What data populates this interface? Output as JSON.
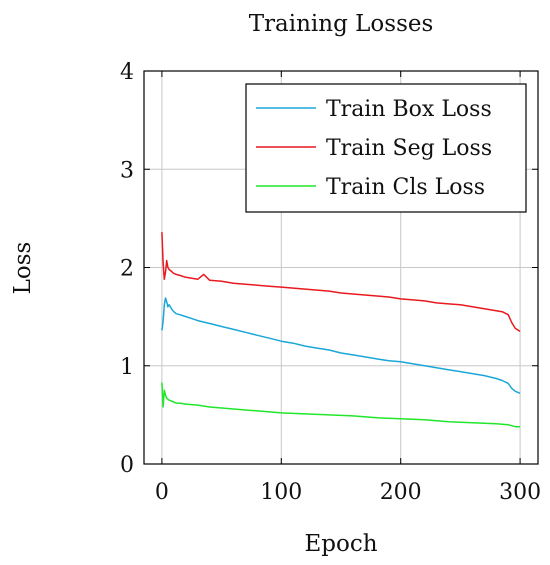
{
  "chart_data": {
    "type": "line",
    "title": "Training Losses",
    "xlabel": "Epoch",
    "ylabel": "Loss",
    "xlim": [
      -15,
      315
    ],
    "ylim": [
      0,
      4
    ],
    "x_ticks": [
      0,
      100,
      200,
      300
    ],
    "y_ticks": [
      0,
      1,
      2,
      3,
      4
    ],
    "grid": true,
    "legend_position": "top-right",
    "series": [
      {
        "name": "Train Box Loss",
        "color": "#1aa7d8",
        "x": [
          0,
          1,
          2,
          3,
          4,
          5,
          6,
          8,
          10,
          12,
          15,
          20,
          25,
          30,
          40,
          50,
          60,
          70,
          80,
          90,
          100,
          110,
          120,
          130,
          140,
          150,
          160,
          170,
          180,
          190,
          200,
          210,
          220,
          230,
          240,
          250,
          260,
          270,
          280,
          285,
          290,
          293,
          296,
          300
        ],
        "y": [
          1.36,
          1.45,
          1.62,
          1.69,
          1.65,
          1.6,
          1.62,
          1.58,
          1.55,
          1.53,
          1.52,
          1.5,
          1.48,
          1.46,
          1.43,
          1.4,
          1.37,
          1.34,
          1.31,
          1.28,
          1.25,
          1.23,
          1.2,
          1.18,
          1.16,
          1.13,
          1.11,
          1.09,
          1.07,
          1.05,
          1.04,
          1.02,
          1.0,
          0.98,
          0.96,
          0.94,
          0.92,
          0.9,
          0.87,
          0.85,
          0.82,
          0.77,
          0.74,
          0.72
        ]
      },
      {
        "name": "Train Seg Loss",
        "color": "#e8191f",
        "x": [
          0,
          1,
          2,
          3,
          4,
          5,
          6,
          8,
          10,
          12,
          15,
          20,
          25,
          30,
          35,
          40,
          50,
          60,
          70,
          80,
          90,
          100,
          110,
          120,
          130,
          140,
          150,
          160,
          170,
          180,
          190,
          200,
          210,
          220,
          230,
          240,
          250,
          260,
          270,
          280,
          285,
          290,
          293,
          296,
          300
        ],
        "y": [
          2.36,
          2.05,
          1.88,
          1.95,
          2.07,
          2.0,
          1.98,
          1.96,
          1.94,
          1.93,
          1.92,
          1.9,
          1.89,
          1.88,
          1.93,
          1.87,
          1.86,
          1.84,
          1.83,
          1.82,
          1.81,
          1.8,
          1.79,
          1.78,
          1.77,
          1.76,
          1.74,
          1.73,
          1.72,
          1.71,
          1.7,
          1.68,
          1.67,
          1.66,
          1.64,
          1.63,
          1.62,
          1.6,
          1.58,
          1.56,
          1.55,
          1.52,
          1.44,
          1.38,
          1.35
        ]
      },
      {
        "name": "Train Cls Loss",
        "color": "#22e62a",
        "x": [
          0,
          1,
          2,
          3,
          4,
          5,
          6,
          8,
          10,
          12,
          15,
          20,
          30,
          40,
          50,
          60,
          70,
          80,
          90,
          100,
          120,
          140,
          160,
          180,
          200,
          220,
          240,
          260,
          280,
          290,
          293,
          296,
          300
        ],
        "y": [
          0.83,
          0.58,
          0.75,
          0.7,
          0.67,
          0.66,
          0.65,
          0.64,
          0.63,
          0.62,
          0.62,
          0.61,
          0.6,
          0.58,
          0.57,
          0.56,
          0.55,
          0.54,
          0.53,
          0.52,
          0.51,
          0.5,
          0.49,
          0.47,
          0.46,
          0.45,
          0.43,
          0.42,
          0.41,
          0.4,
          0.39,
          0.38,
          0.38
        ]
      }
    ]
  }
}
